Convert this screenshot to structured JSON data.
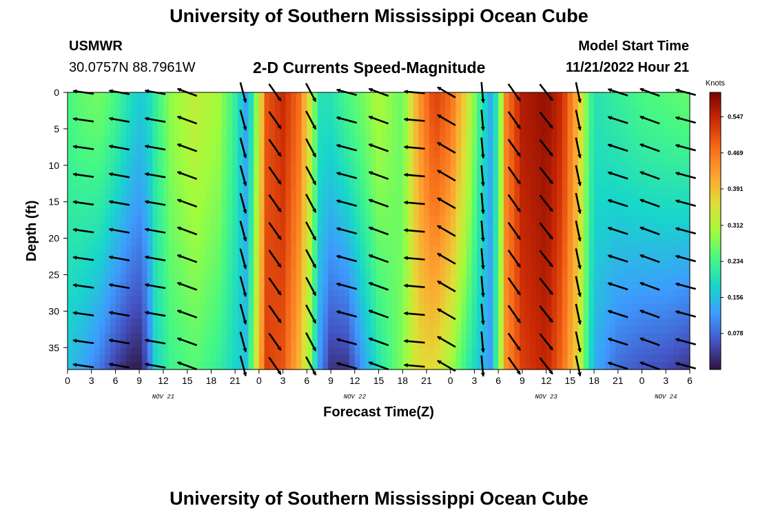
{
  "title": "University of Southern Mississippi Ocean Cube",
  "station": {
    "name": "USMWR",
    "coords": "30.0757N  88.7961W"
  },
  "subtitle": "2-D Currents Speed-Magnitude",
  "model_start": {
    "label": "Model Start Time",
    "value": "11/21/2022 Hour 21"
  },
  "footer_title": "University of Southern Mississippi Ocean Cube",
  "chart_data": {
    "type": "heatmap",
    "xlabel": "Forecast Time(Z)",
    "ylabel": "Depth (ft)",
    "x_ticks": [
      "0",
      "3",
      "6",
      "9",
      "12",
      "15",
      "18",
      "21",
      "0",
      "3",
      "6",
      "9",
      "12",
      "15",
      "18",
      "21",
      "0",
      "3",
      "6",
      "9",
      "12",
      "15",
      "18",
      "21",
      "0",
      "3",
      "6"
    ],
    "x_range_hours": [
      0,
      78
    ],
    "y_ticks": [
      "0",
      "5",
      "10",
      "15",
      "20",
      "25",
      "30",
      "35"
    ],
    "y_range": [
      0,
      38
    ],
    "date_labels": [
      {
        "label": "NOV 21",
        "hour": 12
      },
      {
        "label": "NOV 22",
        "hour": 36
      },
      {
        "label": "NOV 23",
        "hour": 60
      },
      {
        "label": "NOV 24",
        "hour": 75
      }
    ],
    "colorbar": {
      "unit": "Knots",
      "ticks": [
        "0.547",
        "0.469",
        "0.391",
        "0.312",
        "0.234",
        "0.156",
        "0.078"
      ],
      "tick_values": [
        0.547,
        0.469,
        0.391,
        0.312,
        0.234,
        0.156,
        0.078
      ],
      "min": 0,
      "max": 0.6,
      "colors": [
        "#30123b",
        "#4454c4",
        "#3e9bfe",
        "#18d6cb",
        "#46f884",
        "#a2fc3c",
        "#e1dd37",
        "#fea331",
        "#f66b19",
        "#cb2a04",
        "#7a0403"
      ]
    },
    "speed_profile": [
      {
        "hour": 0,
        "surface": 0.24,
        "bottom": 0.16
      },
      {
        "hour": 2,
        "surface": 0.26,
        "bottom": 0.13
      },
      {
        "hour": 4,
        "surface": 0.27,
        "bottom": 0.09
      },
      {
        "hour": 6,
        "surface": 0.24,
        "bottom": 0.04
      },
      {
        "hour": 8,
        "surface": 0.19,
        "bottom": 0.01
      },
      {
        "hour": 9,
        "surface": 0.17,
        "bottom": 0.01
      },
      {
        "hour": 10,
        "surface": 0.18,
        "bottom": 0.06
      },
      {
        "hour": 11,
        "surface": 0.22,
        "bottom": 0.18
      },
      {
        "hour": 13,
        "surface": 0.29,
        "bottom": 0.23
      },
      {
        "hour": 16,
        "surface": 0.33,
        "bottom": 0.25
      },
      {
        "hour": 19,
        "surface": 0.3,
        "bottom": 0.22
      },
      {
        "hour": 21,
        "surface": 0.22,
        "bottom": 0.18
      },
      {
        "hour": 22.5,
        "surface": 0.12,
        "bottom": 0.16
      },
      {
        "hour": 24,
        "surface": 0.33,
        "bottom": 0.4
      },
      {
        "hour": 25,
        "surface": 0.5,
        "bottom": 0.52
      },
      {
        "hour": 27,
        "surface": 0.54,
        "bottom": 0.5
      },
      {
        "hour": 29,
        "surface": 0.48,
        "bottom": 0.4
      },
      {
        "hour": 30.5,
        "surface": 0.33,
        "bottom": 0.28
      },
      {
        "hour": 31.5,
        "surface": 0.2,
        "bottom": 0.12
      },
      {
        "hour": 33,
        "surface": 0.2,
        "bottom": 0.03
      },
      {
        "hour": 35,
        "surface": 0.24,
        "bottom": 0.03
      },
      {
        "hour": 37,
        "surface": 0.27,
        "bottom": 0.12
      },
      {
        "hour": 39,
        "surface": 0.31,
        "bottom": 0.2
      },
      {
        "hour": 42,
        "surface": 0.26,
        "bottom": 0.28
      },
      {
        "hour": 44,
        "surface": 0.43,
        "bottom": 0.36
      },
      {
        "hour": 46,
        "surface": 0.52,
        "bottom": 0.36
      },
      {
        "hour": 48,
        "surface": 0.48,
        "bottom": 0.3
      },
      {
        "hour": 50,
        "surface": 0.36,
        "bottom": 0.22
      },
      {
        "hour": 52,
        "surface": 0.2,
        "bottom": 0.15
      },
      {
        "hour": 53,
        "surface": 0.14,
        "bottom": 0.12
      },
      {
        "hour": 54,
        "surface": 0.22,
        "bottom": 0.26
      },
      {
        "hour": 55,
        "surface": 0.46,
        "bottom": 0.44
      },
      {
        "hour": 57,
        "surface": 0.56,
        "bottom": 0.52
      },
      {
        "hour": 60,
        "surface": 0.58,
        "bottom": 0.55
      },
      {
        "hour": 62,
        "surface": 0.54,
        "bottom": 0.48
      },
      {
        "hour": 64,
        "surface": 0.4,
        "bottom": 0.36
      },
      {
        "hour": 65,
        "surface": 0.28,
        "bottom": 0.24
      },
      {
        "hour": 66,
        "surface": 0.2,
        "bottom": 0.14
      },
      {
        "hour": 69,
        "surface": 0.22,
        "bottom": 0.08
      },
      {
        "hour": 72,
        "surface": 0.24,
        "bottom": 0.06
      },
      {
        "hour": 75,
        "surface": 0.25,
        "bottom": 0.05
      },
      {
        "hour": 78,
        "surface": 0.26,
        "bottom": 0.03
      }
    ],
    "vector_hours": [
      2,
      6.5,
      11,
      15,
      22,
      26,
      30.5,
      35,
      39,
      43.5,
      47.5,
      52,
      56,
      60,
      64,
      69,
      73,
      77.5
    ],
    "vector_depths": [
      0,
      3.8,
      7.6,
      11.4,
      15.2,
      19,
      22.8,
      26.6,
      30.4,
      34.2,
      37.5
    ],
    "vector_angles_deg": [
      -172,
      -170,
      -170,
      -160,
      75,
      55,
      62,
      -165,
      -160,
      -175,
      -150,
      85,
      55,
      52,
      78,
      -162,
      -160,
      -165
    ]
  }
}
